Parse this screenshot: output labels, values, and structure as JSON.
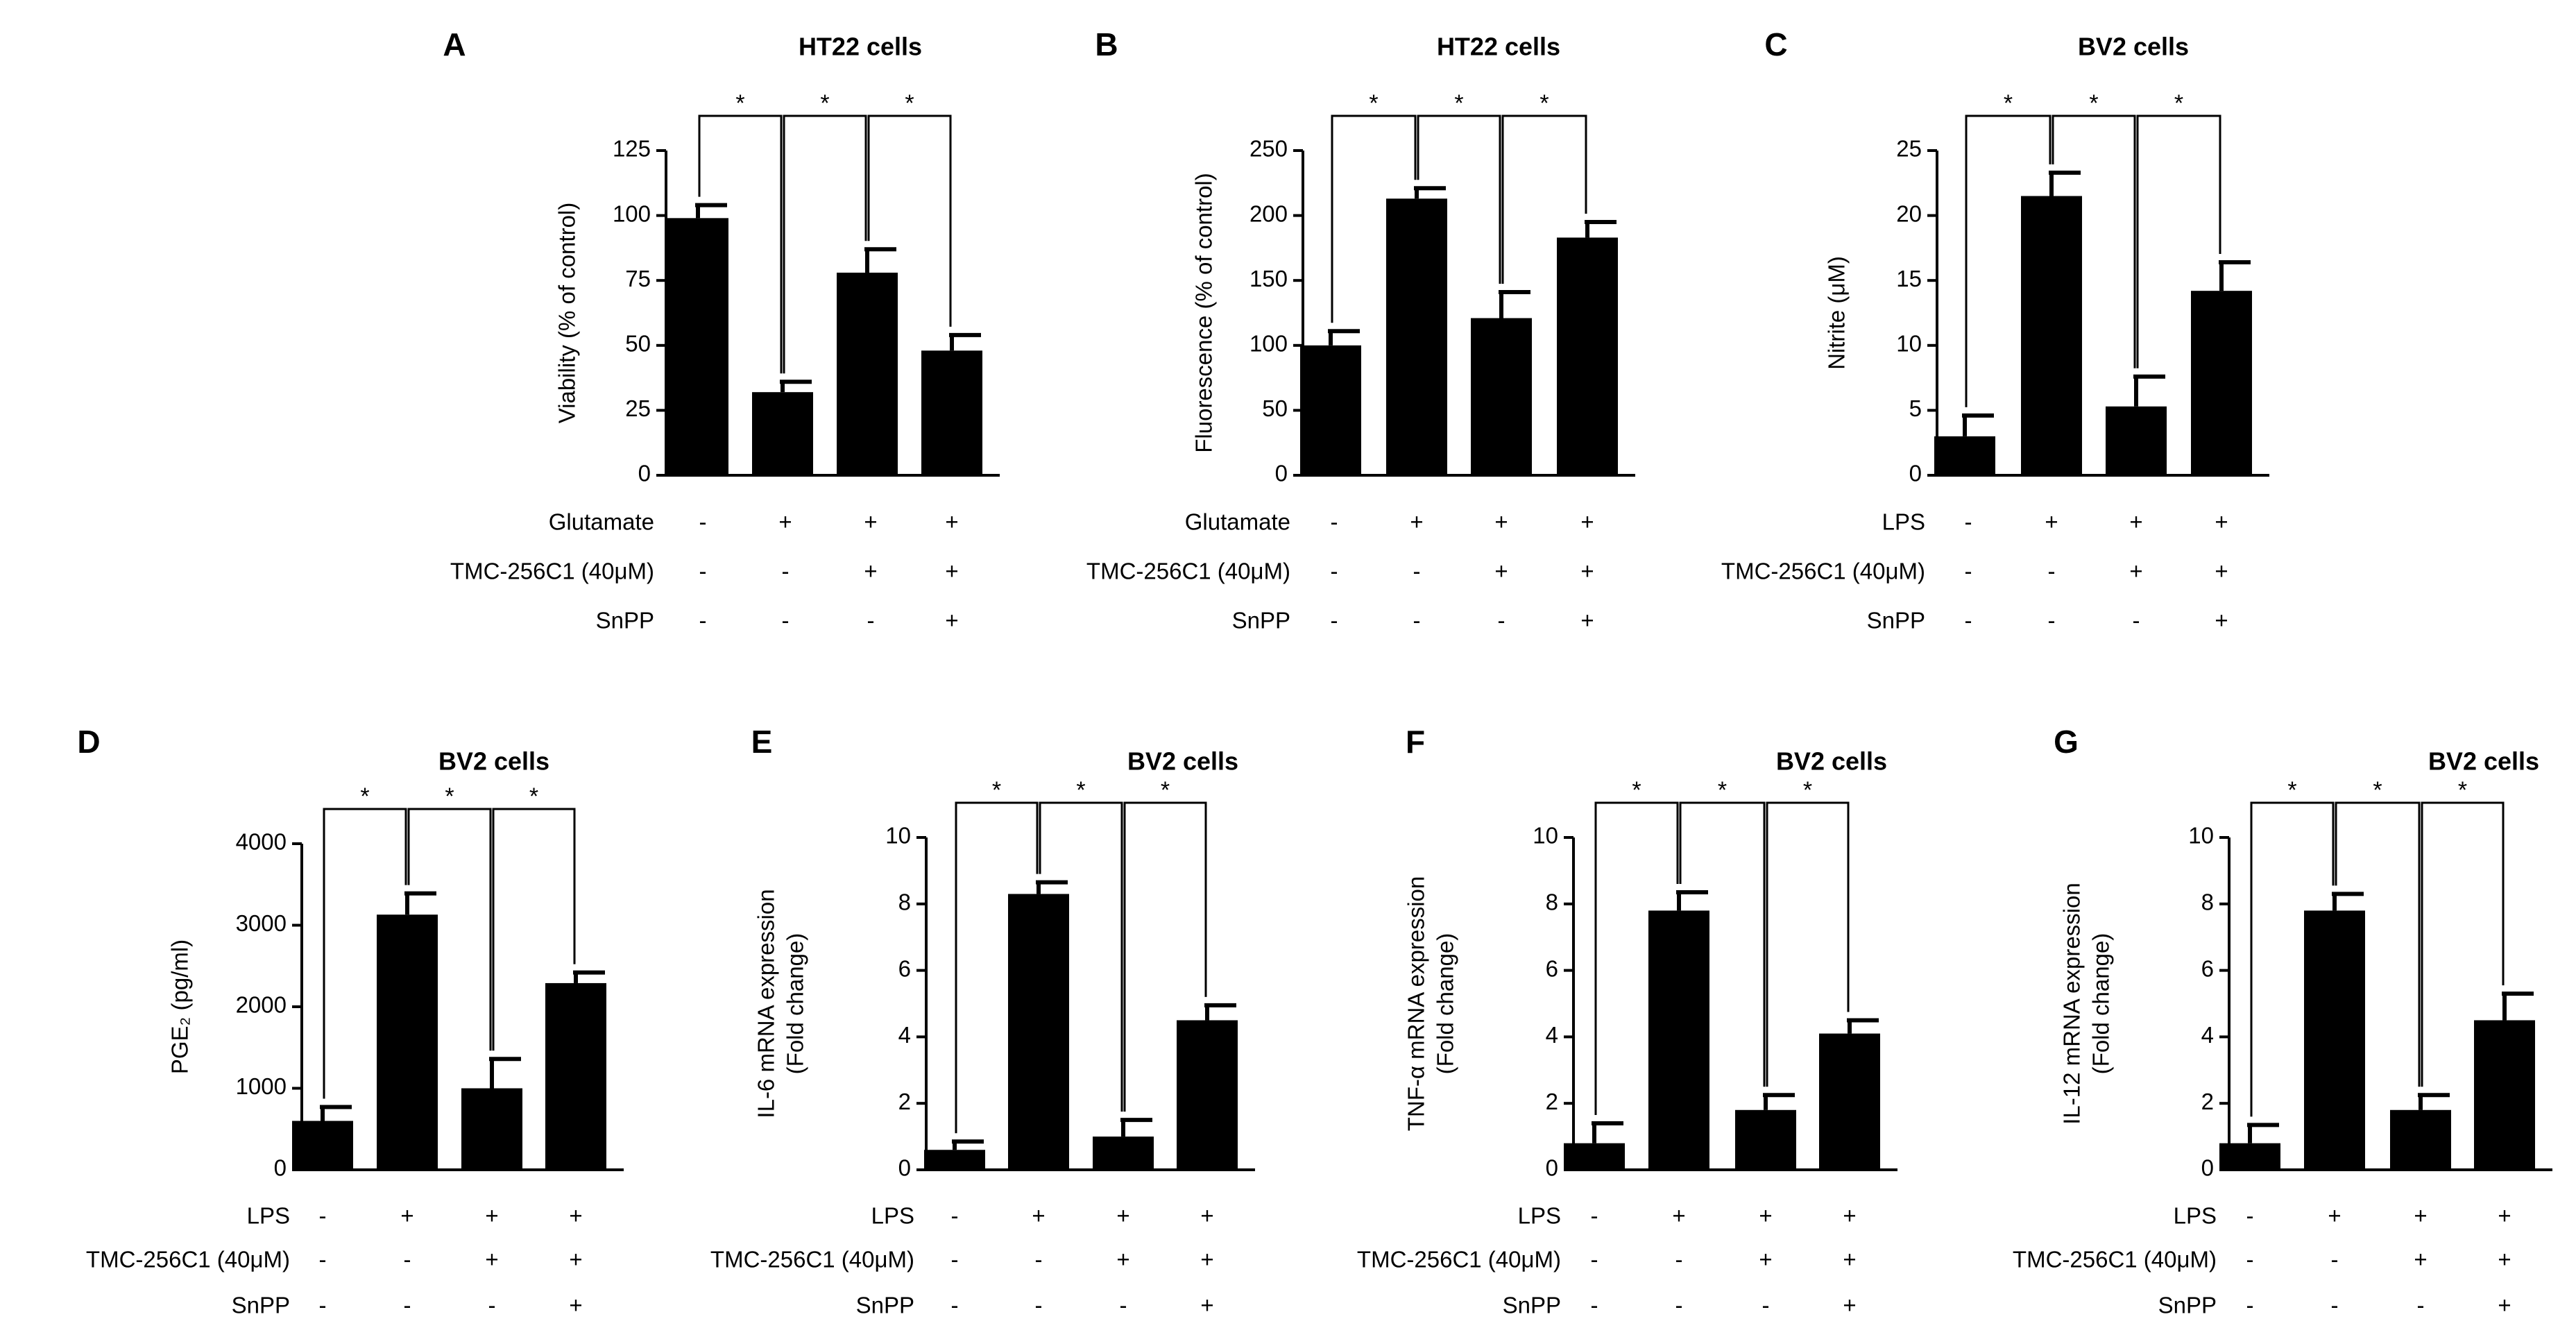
{
  "figure": {
    "background": "#ffffff",
    "bar_color": "#000000"
  },
  "chart_data": [
    {
      "id": "A",
      "type": "bar",
      "letter": "A",
      "title": "HT22 cells",
      "ylabel": [
        "Viability (% of control)"
      ],
      "ylim": [
        0,
        125
      ],
      "yticks": [
        0,
        25,
        50,
        75,
        100,
        125
      ],
      "values": [
        99,
        32,
        78,
        48
      ],
      "errors": [
        5,
        4,
        9,
        6
      ],
      "significance": [
        "*",
        "*",
        "*"
      ],
      "conditions": [
        {
          "label": "Glutamate",
          "signs": [
            "-",
            "+",
            "+",
            "+"
          ]
        },
        {
          "label": "TMC-256C1 (40μM)",
          "signs": [
            "-",
            "-",
            "+",
            "+"
          ]
        },
        {
          "label": "SnPP",
          "signs": [
            "-",
            "-",
            "-",
            "+"
          ]
        }
      ]
    },
    {
      "id": "B",
      "type": "bar",
      "letter": "B",
      "title": "HT22 cells",
      "ylabel": [
        "Fluorescence (% of control)"
      ],
      "ylim": [
        0,
        250
      ],
      "yticks": [
        0,
        50,
        100,
        150,
        200,
        250
      ],
      "values": [
        100,
        213,
        121,
        183
      ],
      "errors": [
        11,
        8,
        20,
        12
      ],
      "significance": [
        "*",
        "*",
        "*"
      ],
      "conditions": [
        {
          "label": "Glutamate",
          "signs": [
            "-",
            "+",
            "+",
            "+"
          ]
        },
        {
          "label": "TMC-256C1 (40μM)",
          "signs": [
            "-",
            "-",
            "+",
            "+"
          ]
        },
        {
          "label": "SnPP",
          "signs": [
            "-",
            "-",
            "-",
            "+"
          ]
        }
      ]
    },
    {
      "id": "C",
      "type": "bar",
      "letter": "C",
      "title": "BV2 cells",
      "ylabel": [
        "Nitrite (μM)"
      ],
      "ylim": [
        0,
        25
      ],
      "yticks": [
        0,
        5,
        10,
        15,
        20,
        25
      ],
      "values": [
        3.0,
        21.5,
        5.3,
        14.2
      ],
      "errors": [
        1.6,
        1.8,
        2.3,
        2.2
      ],
      "significance": [
        "*",
        "*",
        "*"
      ],
      "conditions": [
        {
          "label": "LPS",
          "signs": [
            "-",
            "+",
            "+",
            "+"
          ]
        },
        {
          "label": "TMC-256C1 (40μM)",
          "signs": [
            "-",
            "-",
            "+",
            "+"
          ]
        },
        {
          "label": "SnPP",
          "signs": [
            "-",
            "-",
            "-",
            "+"
          ]
        }
      ]
    },
    {
      "id": "D",
      "type": "bar",
      "letter": "D",
      "title": "BV2 cells",
      "ylabel": [
        "PGE₂ (pg/ml)"
      ],
      "ylim": [
        0,
        4000
      ],
      "yticks": [
        0,
        1000,
        2000,
        3000,
        4000
      ],
      "values": [
        600,
        3130,
        1000,
        2290
      ],
      "errors": [
        170,
        260,
        360,
        130
      ],
      "significance": [
        "*",
        "*",
        "*"
      ],
      "conditions": [
        {
          "label": "LPS",
          "signs": [
            "-",
            "+",
            "+",
            "+"
          ]
        },
        {
          "label": "TMC-256C1 (40μM)",
          "signs": [
            "-",
            "-",
            "+",
            "+"
          ]
        },
        {
          "label": "SnPP",
          "signs": [
            "-",
            "-",
            "-",
            "+"
          ]
        }
      ]
    },
    {
      "id": "E",
      "type": "bar",
      "letter": "E",
      "title": "BV2 cells",
      "ylabel": [
        "IL-6 mRNA expression",
        "(Fold change)"
      ],
      "ylim": [
        0,
        10
      ],
      "yticks": [
        0,
        2,
        4,
        6,
        8,
        10
      ],
      "values": [
        0.6,
        8.3,
        1.0,
        4.5
      ],
      "errors": [
        0.25,
        0.35,
        0.5,
        0.45
      ],
      "significance": [
        "*",
        "*",
        "*"
      ],
      "conditions": [
        {
          "label": "LPS",
          "signs": [
            "-",
            "+",
            "+",
            "+"
          ]
        },
        {
          "label": "TMC-256C1 (40μM)",
          "signs": [
            "-",
            "-",
            "+",
            "+"
          ]
        },
        {
          "label": "SnPP",
          "signs": [
            "-",
            "-",
            "-",
            "+"
          ]
        }
      ]
    },
    {
      "id": "F",
      "type": "bar",
      "letter": "F",
      "title": "BV2 cells",
      "ylabel": [
        "TNF-α mRNA expression",
        "(Fold change)"
      ],
      "ylim": [
        0,
        10
      ],
      "yticks": [
        0,
        2,
        4,
        6,
        8,
        10
      ],
      "values": [
        0.8,
        7.8,
        1.8,
        4.1
      ],
      "errors": [
        0.6,
        0.55,
        0.45,
        0.4
      ],
      "significance": [
        "*",
        "*",
        "*"
      ],
      "conditions": [
        {
          "label": "LPS",
          "signs": [
            "-",
            "+",
            "+",
            "+"
          ]
        },
        {
          "label": "TMC-256C1 (40μM)",
          "signs": [
            "-",
            "-",
            "+",
            "+"
          ]
        },
        {
          "label": "SnPP",
          "signs": [
            "-",
            "-",
            "-",
            "+"
          ]
        }
      ]
    },
    {
      "id": "G",
      "type": "bar",
      "letter": "G",
      "title": "BV2 cells",
      "ylabel": [
        "IL-12 mRNA expression",
        "(Fold change)"
      ],
      "ylim": [
        0,
        10
      ],
      "yticks": [
        0,
        2,
        4,
        6,
        8,
        10
      ],
      "values": [
        0.8,
        7.8,
        1.8,
        4.5
      ],
      "errors": [
        0.55,
        0.5,
        0.45,
        0.8
      ],
      "significance": [
        "*",
        "*",
        "*"
      ],
      "conditions": [
        {
          "label": "LPS",
          "signs": [
            "-",
            "+",
            "+",
            "+"
          ]
        },
        {
          "label": "TMC-256C1 (40μM)",
          "signs": [
            "-",
            "-",
            "+",
            "+"
          ]
        },
        {
          "label": "SnPP",
          "signs": [
            "-",
            "-",
            "-",
            "+"
          ]
        }
      ]
    }
  ]
}
